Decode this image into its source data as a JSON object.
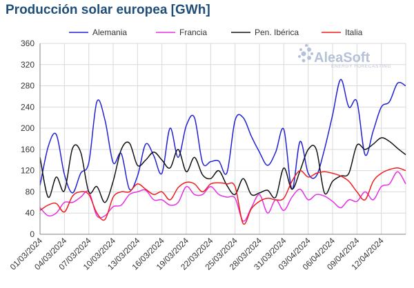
{
  "chart_data": {
    "type": "line",
    "title": "Producción solar europea [GWh]",
    "xlabel": "",
    "ylabel": "",
    "ylim": [
      0,
      360
    ],
    "yticks": [
      0,
      40,
      80,
      120,
      160,
      200,
      240,
      280,
      320,
      360
    ],
    "grid": true,
    "legend_position": "top",
    "x_start": "01/03/2024",
    "x_end": "15/04/2024",
    "x_tick_labels": [
      "01/03/2024",
      "04/03/2024",
      "07/03/2024",
      "10/03/2024",
      "13/03/2024",
      "16/03/2024",
      "19/03/2024",
      "22/03/2024",
      "25/03/2024",
      "28/03/2024",
      "31/03/2024",
      "03/04/2024",
      "06/04/2024",
      "09/04/2024",
      "12/04/2024"
    ],
    "watermark": {
      "brand": "AleaSoft",
      "tagline": "ENERGY FORECASTING"
    },
    "series": [
      {
        "name": "Alemania",
        "color": "#1f1fd6",
        "values": [
          92,
          165,
          188,
          113,
          78,
          115,
          135,
          250,
          215,
          135,
          152,
          85,
          110,
          170,
          148,
          115,
          200,
          145,
          205,
          220,
          135,
          137,
          138,
          116,
          215,
          220,
          185,
          155,
          130,
          155,
          198,
          85,
          175,
          115,
          110,
          160,
          225,
          292,
          240,
          250,
          150,
          195,
          240,
          250,
          285,
          280
        ]
      },
      {
        "name": "Francia",
        "color": "#e62ee6",
        "values": [
          50,
          35,
          40,
          60,
          60,
          70,
          80,
          35,
          35,
          52,
          55,
          75,
          80,
          83,
          65,
          65,
          55,
          60,
          90,
          75,
          75,
          90,
          75,
          70,
          68,
          25,
          50,
          75,
          40,
          65,
          45,
          70,
          85,
          65,
          75,
          72,
          62,
          50,
          65,
          62,
          80,
          65,
          90,
          95,
          118,
          95
        ]
      },
      {
        "name": "Pen. Ibérica",
        "color": "#111111",
        "values": [
          145,
          70,
          108,
          82,
          162,
          155,
          80,
          90,
          60,
          100,
          160,
          172,
          130,
          140,
          155,
          140,
          125,
          160,
          118,
          145,
          112,
          105,
          120,
          92,
          75,
          105,
          75,
          78,
          83,
          70,
          125,
          85,
          120,
          160,
          160,
          78,
          100,
          110,
          115,
          168,
          160,
          170,
          182,
          175,
          162,
          150
        ]
      },
      {
        "name": "Italia",
        "color": "#ee1c1c",
        "values": [
          45,
          55,
          58,
          42,
          72,
          80,
          75,
          40,
          28,
          70,
          80,
          80,
          95,
          85,
          75,
          80,
          65,
          88,
          98,
          95,
          80,
          95,
          97,
          95,
          90,
          20,
          48,
          62,
          68,
          65,
          68,
          100,
          120,
          108,
          115,
          118,
          115,
          110,
          100,
          80,
          65,
          100,
          115,
          122,
          125,
          120
        ]
      }
    ]
  }
}
